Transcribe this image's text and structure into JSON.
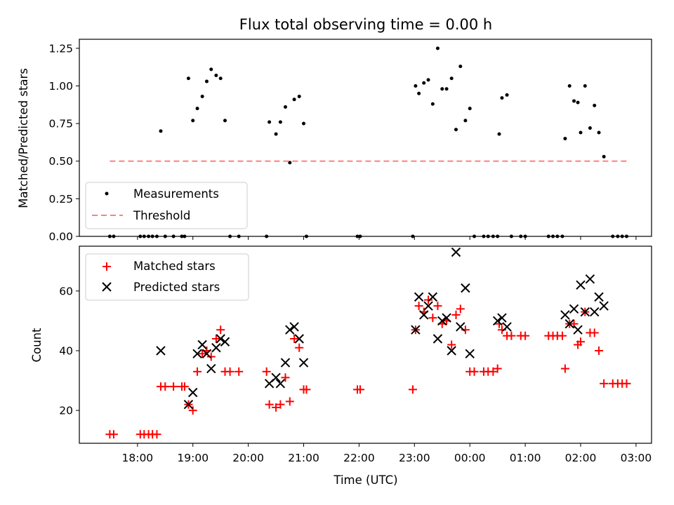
{
  "chart_data": [
    {
      "type": "scatter",
      "title": "Flux total observing time = 0.00 h",
      "ylabel": "Matched/Predicted stars",
      "xlabel": "",
      "xlim": [
        16.95,
        27.28
      ],
      "ylim": [
        0,
        1.31
      ],
      "yticks": [
        0,
        0.25,
        0.5,
        0.75,
        1.0,
        1.25
      ],
      "ytick_labels": [
        "0.00",
        "0.25",
        "0.50",
        "0.75",
        "1.00",
        "1.25"
      ],
      "legend_position": "lower-left",
      "series": [
        {
          "name": "Measurements",
          "marker": "dot",
          "color": "#000000",
          "points": [
            [
              17.5,
              0
            ],
            [
              17.57,
              0
            ],
            [
              18.05,
              0
            ],
            [
              18.12,
              0
            ],
            [
              18.2,
              0
            ],
            [
              18.27,
              0
            ],
            [
              18.35,
              0
            ],
            [
              18.42,
              0.7
            ],
            [
              18.5,
              0
            ],
            [
              18.65,
              0
            ],
            [
              18.8,
              0
            ],
            [
              18.85,
              0
            ],
            [
              18.92,
              1.05
            ],
            [
              19.0,
              0.77
            ],
            [
              19.08,
              0.85
            ],
            [
              19.17,
              0.93
            ],
            [
              19.25,
              1.03
            ],
            [
              19.33,
              1.11
            ],
            [
              19.42,
              1.07
            ],
            [
              19.5,
              1.05
            ],
            [
              19.58,
              0.77
            ],
            [
              19.67,
              0
            ],
            [
              19.83,
              0
            ],
            [
              20.33,
              0
            ],
            [
              20.38,
              0.76
            ],
            [
              20.5,
              0.68
            ],
            [
              20.58,
              0.76
            ],
            [
              20.67,
              0.86
            ],
            [
              20.75,
              0.49
            ],
            [
              20.83,
              0.91
            ],
            [
              20.92,
              0.93
            ],
            [
              21.0,
              0.75
            ],
            [
              21.05,
              0
            ],
            [
              21.97,
              0
            ],
            [
              22.02,
              0
            ],
            [
              22.97,
              0
            ],
            [
              23.02,
              1.0
            ],
            [
              23.08,
              0.95
            ],
            [
              23.17,
              1.02
            ],
            [
              23.25,
              1.04
            ],
            [
              23.33,
              0.88
            ],
            [
              23.42,
              1.25
            ],
            [
              23.5,
              0.98
            ],
            [
              23.58,
              0.98
            ],
            [
              23.67,
              1.05
            ],
            [
              23.75,
              0.71
            ],
            [
              23.83,
              1.13
            ],
            [
              23.92,
              0.77
            ],
            [
              24.0,
              0.85
            ],
            [
              24.08,
              0
            ],
            [
              24.25,
              0
            ],
            [
              24.33,
              0
            ],
            [
              24.42,
              0
            ],
            [
              24.5,
              0
            ],
            [
              24.53,
              0.68
            ],
            [
              24.58,
              0.92
            ],
            [
              24.67,
              0.94
            ],
            [
              24.75,
              0
            ],
            [
              24.92,
              0
            ],
            [
              25.0,
              0
            ],
            [
              25.42,
              0
            ],
            [
              25.5,
              0
            ],
            [
              25.58,
              0
            ],
            [
              25.67,
              0
            ],
            [
              25.72,
              0.65
            ],
            [
              25.8,
              1.0
            ],
            [
              25.88,
              0.9
            ],
            [
              25.95,
              0.89
            ],
            [
              26.0,
              0.69
            ],
            [
              26.08,
              1.0
            ],
            [
              26.17,
              0.72
            ],
            [
              26.25,
              0.87
            ],
            [
              26.33,
              0.69
            ],
            [
              26.42,
              0.53
            ],
            [
              26.58,
              0
            ],
            [
              26.67,
              0
            ],
            [
              26.75,
              0
            ],
            [
              26.83,
              0
            ]
          ]
        },
        {
          "name": "Threshold",
          "marker": "dashed-line",
          "color": "#ff8080",
          "points": [
            [
              17.5,
              0.5
            ],
            [
              26.83,
              0.5
            ]
          ]
        }
      ]
    },
    {
      "type": "scatter",
      "title": "",
      "ylabel": "Count",
      "xlabel": "Time (UTC)",
      "xlim": [
        16.95,
        27.28
      ],
      "ylim": [
        9,
        75
      ],
      "yticks": [
        20,
        40,
        60
      ],
      "ytick_labels": [
        "20",
        "40",
        "60"
      ],
      "x_tick_values": [
        18,
        19,
        20,
        21,
        22,
        23,
        24,
        25,
        26,
        27
      ],
      "x_tick_labels": [
        "18:00",
        "19:00",
        "20:00",
        "21:00",
        "22:00",
        "23:00",
        "00:00",
        "01:00",
        "02:00",
        "03:00"
      ],
      "legend_position": "upper-left",
      "series": [
        {
          "name": "Matched stars",
          "marker": "plus",
          "color": "#ff0000",
          "points": [
            [
              17.5,
              12
            ],
            [
              17.57,
              12
            ],
            [
              18.05,
              12
            ],
            [
              18.12,
              12
            ],
            [
              18.2,
              12
            ],
            [
              18.27,
              12
            ],
            [
              18.35,
              12
            ],
            [
              18.42,
              28
            ],
            [
              18.5,
              28
            ],
            [
              18.65,
              28
            ],
            [
              18.8,
              28
            ],
            [
              18.85,
              28
            ],
            [
              18.92,
              22
            ],
            [
              19.0,
              20
            ],
            [
              19.08,
              33
            ],
            [
              19.17,
              39
            ],
            [
              19.25,
              40
            ],
            [
              19.33,
              38
            ],
            [
              19.42,
              44
            ],
            [
              19.5,
              47
            ],
            [
              19.58,
              33
            ],
            [
              19.67,
              33
            ],
            [
              19.83,
              33
            ],
            [
              20.33,
              33
            ],
            [
              20.38,
              22
            ],
            [
              20.5,
              21
            ],
            [
              20.58,
              22
            ],
            [
              20.67,
              31
            ],
            [
              20.75,
              23
            ],
            [
              20.83,
              44
            ],
            [
              20.92,
              41
            ],
            [
              21.0,
              27
            ],
            [
              21.05,
              27
            ],
            [
              21.97,
              27
            ],
            [
              22.02,
              27
            ],
            [
              22.97,
              27
            ],
            [
              23.02,
              47
            ],
            [
              23.08,
              55
            ],
            [
              23.17,
              53
            ],
            [
              23.25,
              57
            ],
            [
              23.33,
              51
            ],
            [
              23.42,
              55
            ],
            [
              23.5,
              49
            ],
            [
              23.58,
              50
            ],
            [
              23.67,
              42
            ],
            [
              23.75,
              52
            ],
            [
              23.83,
              54
            ],
            [
              23.92,
              47
            ],
            [
              24.0,
              33
            ],
            [
              24.08,
              33
            ],
            [
              24.25,
              33
            ],
            [
              24.33,
              33
            ],
            [
              24.42,
              33
            ],
            [
              24.5,
              34
            ],
            [
              24.53,
              49
            ],
            [
              24.58,
              47
            ],
            [
              24.67,
              45
            ],
            [
              24.75,
              45
            ],
            [
              24.92,
              45
            ],
            [
              25.0,
              45
            ],
            [
              25.42,
              45
            ],
            [
              25.5,
              45
            ],
            [
              25.58,
              45
            ],
            [
              25.67,
              45
            ],
            [
              25.72,
              34
            ],
            [
              25.8,
              49
            ],
            [
              25.88,
              49
            ],
            [
              25.95,
              42
            ],
            [
              26.0,
              43
            ],
            [
              26.08,
              53
            ],
            [
              26.17,
              46
            ],
            [
              26.25,
              46
            ],
            [
              26.33,
              40
            ],
            [
              26.42,
              29
            ],
            [
              26.58,
              29
            ],
            [
              26.67,
              29
            ],
            [
              26.75,
              29
            ],
            [
              26.83,
              29
            ]
          ]
        },
        {
          "name": "Predicted stars",
          "marker": "x",
          "color": "#000000",
          "points": [
            [
              18.42,
              40
            ],
            [
              18.92,
              22
            ],
            [
              19.0,
              26
            ],
            [
              19.08,
              39
            ],
            [
              19.17,
              42
            ],
            [
              19.25,
              39
            ],
            [
              19.33,
              34
            ],
            [
              19.42,
              41
            ],
            [
              19.5,
              44
            ],
            [
              19.58,
              43
            ],
            [
              20.38,
              29
            ],
            [
              20.5,
              31
            ],
            [
              20.58,
              29
            ],
            [
              20.67,
              36
            ],
            [
              20.75,
              47
            ],
            [
              20.83,
              48
            ],
            [
              20.92,
              44
            ],
            [
              21.0,
              36
            ],
            [
              23.02,
              47
            ],
            [
              23.08,
              58
            ],
            [
              23.17,
              52
            ],
            [
              23.25,
              55
            ],
            [
              23.33,
              58
            ],
            [
              23.42,
              44
            ],
            [
              23.5,
              50
            ],
            [
              23.58,
              51
            ],
            [
              23.67,
              40
            ],
            [
              23.75,
              73
            ],
            [
              23.83,
              48
            ],
            [
              23.92,
              61
            ],
            [
              24.0,
              39
            ],
            [
              24.5,
              50
            ],
            [
              24.58,
              51
            ],
            [
              24.67,
              48
            ],
            [
              25.72,
              52
            ],
            [
              25.8,
              49
            ],
            [
              25.88,
              54
            ],
            [
              25.95,
              47
            ],
            [
              26.0,
              62
            ],
            [
              26.08,
              53
            ],
            [
              26.17,
              64
            ],
            [
              26.25,
              53
            ],
            [
              26.33,
              58
            ],
            [
              26.42,
              55
            ]
          ]
        }
      ]
    }
  ]
}
